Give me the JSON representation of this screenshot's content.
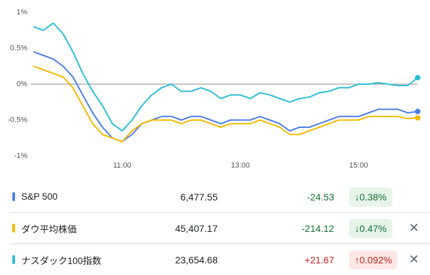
{
  "chart_data": {
    "type": "line",
    "categories": [
      null,
      null,
      null,
      null,
      null,
      null,
      null,
      null,
      null,
      "11:00",
      null,
      null,
      null,
      null,
      null,
      null,
      null,
      null,
      null,
      null,
      null,
      "13:00",
      null,
      null,
      null,
      null,
      null,
      null,
      null,
      null,
      null,
      null,
      null,
      "15:00",
      null,
      null,
      null,
      null,
      null,
      null
    ],
    "series": [
      {
        "name": "S&P 500",
        "color": "#4c7de8",
        "values": [
          0.45,
          0.4,
          0.35,
          0.25,
          0.1,
          -0.15,
          -0.4,
          -0.6,
          -0.75,
          -0.8,
          -0.7,
          -0.55,
          -0.5,
          -0.45,
          -0.45,
          -0.5,
          -0.45,
          -0.45,
          -0.5,
          -0.55,
          -0.5,
          -0.5,
          -0.5,
          -0.45,
          -0.5,
          -0.55,
          -0.65,
          -0.6,
          -0.6,
          -0.55,
          -0.5,
          -0.45,
          -0.45,
          -0.45,
          -0.4,
          -0.35,
          -0.35,
          -0.35,
          -0.4,
          -0.38
        ]
      },
      {
        "name": "ダウ平均株価",
        "color": "#f6b800",
        "values": [
          0.25,
          0.2,
          0.15,
          0.1,
          -0.05,
          -0.3,
          -0.55,
          -0.7,
          -0.75,
          -0.8,
          -0.65,
          -0.55,
          -0.5,
          -0.5,
          -0.5,
          -0.55,
          -0.5,
          -0.5,
          -0.55,
          -0.6,
          -0.55,
          -0.55,
          -0.55,
          -0.5,
          -0.55,
          -0.6,
          -0.7,
          -0.7,
          -0.65,
          -0.6,
          -0.55,
          -0.5,
          -0.5,
          -0.5,
          -0.45,
          -0.45,
          -0.45,
          -0.45,
          -0.48,
          -0.47
        ]
      },
      {
        "name": "ナスダック100指数",
        "color": "#2bbed3",
        "values": [
          0.8,
          0.75,
          0.85,
          0.7,
          0.45,
          0.15,
          -0.1,
          -0.3,
          -0.55,
          -0.65,
          -0.5,
          -0.3,
          -0.15,
          -0.05,
          0.0,
          -0.1,
          -0.1,
          -0.05,
          -0.1,
          -0.2,
          -0.15,
          -0.15,
          -0.2,
          -0.12,
          -0.15,
          -0.2,
          -0.25,
          -0.2,
          -0.18,
          -0.12,
          -0.1,
          -0.05,
          -0.05,
          0.0,
          0.0,
          0.02,
          0.0,
          -0.02,
          -0.02,
          0.09
        ]
      }
    ],
    "ylim": [
      -1,
      1
    ],
    "yticks": [
      {
        "value": -1,
        "label": "-1%"
      },
      {
        "value": -0.5,
        "label": "-0.5%"
      },
      {
        "value": 0,
        "label": "0%"
      },
      {
        "value": 0.5,
        "label": "0.5%"
      },
      {
        "value": 1,
        "label": "1%"
      }
    ]
  },
  "table": {
    "rows": [
      {
        "price": "6,477.55",
        "change": "-24.53",
        "percent": "↓0.38%",
        "direction": "down",
        "closable": false
      },
      {
        "price": "45,407.17",
        "change": "-214.12",
        "percent": "↓0.47%",
        "direction": "down",
        "closable": true
      },
      {
        "price": "23,654.68",
        "change": "+21.67",
        "percent": "↑0.092%",
        "direction": "up",
        "closable": true
      }
    ],
    "close": "✕"
  }
}
